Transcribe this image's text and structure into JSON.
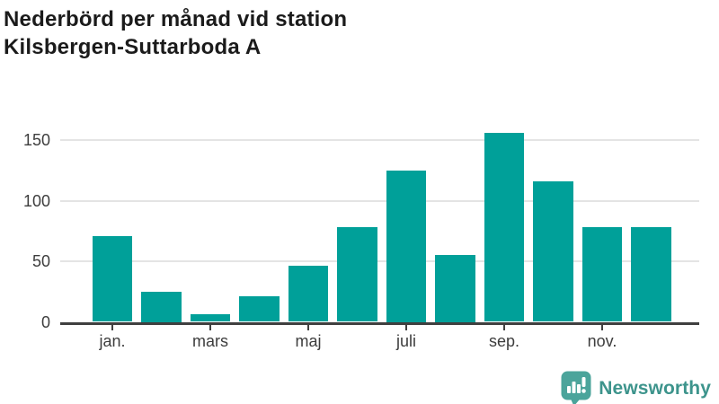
{
  "title": {
    "line1": "Nederbörd per månad vid station",
    "line2": "Kilsbergen-Suttarboda A"
  },
  "chart_data": {
    "type": "bar",
    "title": "Nederbörd per månad vid station Kilsbergen-Suttarboda A",
    "values": [
      71,
      25,
      6,
      21,
      46,
      78,
      125,
      55,
      156,
      116,
      78,
      78
    ],
    "x_tick_labels": [
      "jan.",
      "mars",
      "maj",
      "juli",
      "sep.",
      "nov."
    ],
    "x_tick_bar_indices": [
      0,
      2,
      4,
      6,
      8,
      10
    ],
    "y_ticks": [
      0,
      50,
      100,
      150
    ],
    "y_tick_labels": [
      "0",
      "50",
      "100",
      "150"
    ],
    "ylim": [
      0,
      160
    ],
    "grid": "horizontal",
    "legend": "none",
    "bar_color": "#00a099",
    "axis_color": "#3f3f3f",
    "gridline_color": "#e4e4e4",
    "tick_label_color": "#3d3d3d",
    "title_color": "#1b1b1b"
  },
  "footer": {
    "brand": "Newsworthy",
    "brand_color": "#3d948c",
    "logo_icon": "bar-chart-speech-bubble-icon",
    "logo_color": "#4ba49b"
  }
}
